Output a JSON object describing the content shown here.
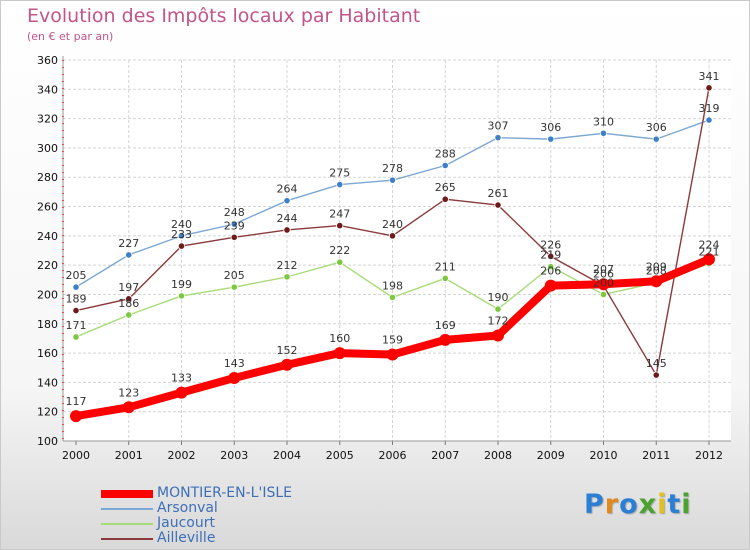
{
  "title": "Evolution des Impôts locaux par Habitant",
  "subtitle": "(en € et par an)",
  "logo": {
    "letters": [
      "P",
      "r",
      "o",
      "x",
      "i",
      "t",
      "i"
    ],
    "colors": [
      "#2a7fd4",
      "#e08a1e",
      "#2a7fd4",
      "#4aa32e",
      "#e0c020",
      "#2a7fd4",
      "#4aa32e"
    ]
  },
  "chart_data": {
    "type": "line",
    "x": [
      "2000",
      "2001",
      "2002",
      "2003",
      "2004",
      "2005",
      "2006",
      "2007",
      "2008",
      "2009",
      "2010",
      "2011",
      "2012"
    ],
    "ylim": [
      100,
      360
    ],
    "yticks": [
      "100",
      "120",
      "140",
      "160",
      "180",
      "200",
      "220",
      "240",
      "260",
      "280",
      "300",
      "320",
      "340",
      "360"
    ],
    "grid": true,
    "legend_position": "bottom-left",
    "series": [
      {
        "name": "MONTIER-EN-L'ISLE",
        "color": "#ff0000",
        "values": [
          117,
          123,
          133,
          143,
          152,
          160,
          159,
          169,
          172,
          206,
          207,
          209,
          224
        ],
        "labels": [
          "117",
          "123",
          "133",
          "143",
          "152",
          "160",
          "159",
          "169",
          "172",
          "206",
          "207",
          "209",
          "224"
        ]
      },
      {
        "name": "Arsonval",
        "color": "#7ba7d4",
        "marker": "#3f7fc8",
        "values": [
          205,
          227,
          240,
          248,
          264,
          275,
          278,
          288,
          307,
          306,
          310,
          306,
          319
        ],
        "labels": [
          "205",
          "227",
          "240",
          "248",
          "264",
          "275",
          "278",
          "288",
          "307",
          "306",
          "310",
          "306",
          "319"
        ]
      },
      {
        "name": "Jaucourt",
        "color": "#a8dc78",
        "marker": "#7cc840",
        "values": [
          171,
          186,
          199,
          205,
          212,
          222,
          198,
          211,
          190,
          219,
          200,
          208,
          221
        ],
        "labels": [
          "171",
          "186",
          "199",
          "205",
          "212",
          "222",
          "198",
          "211",
          "190",
          "219",
          "200",
          "208",
          "221"
        ]
      },
      {
        "name": "Ailleville",
        "color": "#8a3a3a",
        "marker": "#6e1a1a",
        "values": [
          189,
          197,
          233,
          239,
          244,
          247,
          240,
          265,
          261,
          226,
          206,
          145,
          341
        ],
        "labels": [
          "189",
          "197",
          "233",
          "239",
          "244",
          "247",
          "240",
          "265",
          "261",
          "226",
          "206",
          "145",
          "341"
        ]
      }
    ]
  }
}
